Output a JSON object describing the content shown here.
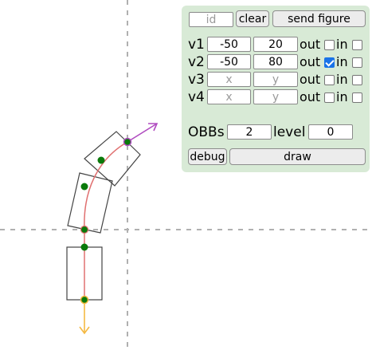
{
  "colors": {
    "panel_bg": "#d8ead6",
    "axis": "#b0b0b0",
    "curve": "#e07070",
    "point_fill": "#0a7a0a",
    "in_arrow": "#f5b942",
    "out_arrow": "#b04cc0",
    "checkbox_checked": "#1a73e8"
  },
  "toolbar": {
    "id_placeholder": "id",
    "clear_label": "clear",
    "send_label": "send figure"
  },
  "vectors": [
    {
      "label": "v1",
      "x": "-50",
      "y": "20",
      "x_placeholder": "x",
      "y_placeholder": "y",
      "out_label": "out",
      "out_checked": false,
      "in_label": "in",
      "in_checked": false
    },
    {
      "label": "v2",
      "x": "-50",
      "y": "80",
      "x_placeholder": "x",
      "y_placeholder": "y",
      "out_label": "out",
      "out_checked": true,
      "in_label": "in",
      "in_checked": false
    },
    {
      "label": "v3",
      "x": "",
      "y": "",
      "x_placeholder": "x",
      "y_placeholder": "y",
      "out_label": "out",
      "out_checked": false,
      "in_label": "in",
      "in_checked": false
    },
    {
      "label": "v4",
      "x": "",
      "y": "",
      "x_placeholder": "x",
      "y_placeholder": "y",
      "out_label": "out",
      "out_checked": false,
      "in_label": "in",
      "in_checked": false
    }
  ],
  "obbs": {
    "label": "OBBs",
    "value": "2"
  },
  "level": {
    "label": "level",
    "value": "0"
  },
  "actions": {
    "debug_label": "debug",
    "draw_label": "draw"
  }
}
